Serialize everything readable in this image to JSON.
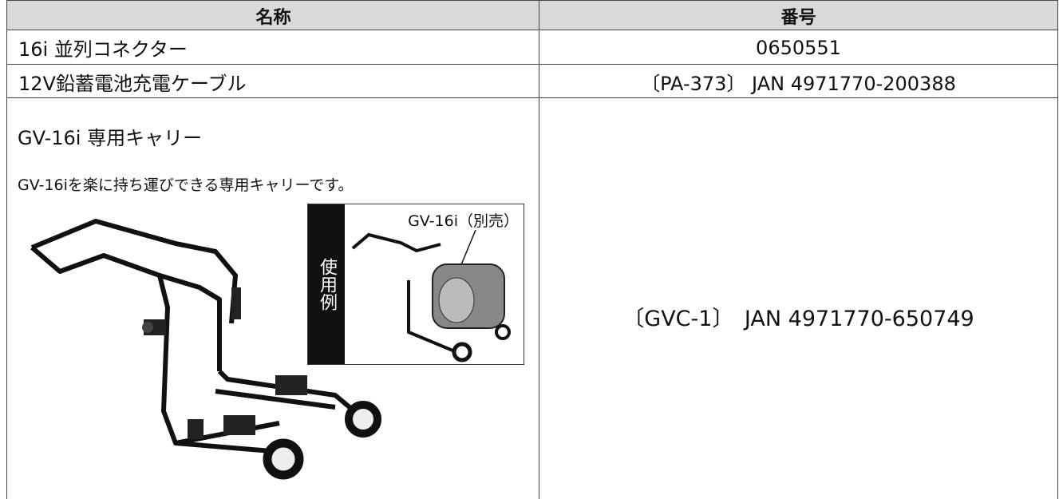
{
  "table": {
    "header": [
      "名称",
      "番号"
    ],
    "rows": [
      [
        "16i 並列コネクター",
        "0650551"
      ],
      [
        "12V鉛蓄電池充電ケーブル",
        "〔PA-373〕 JAN 4971770-200388"
      ],
      [
        "GV-16i 専用キャリー",
        "〔GVC-1〕　JAN 4971770-650749"
      ]
    ],
    "carrier_description": "GV-16iを楽に持ち運びできる専用キャリーです。",
    "inset": {
      "label": "使用例",
      "callout": "GV-16i（別売）"
    }
  }
}
